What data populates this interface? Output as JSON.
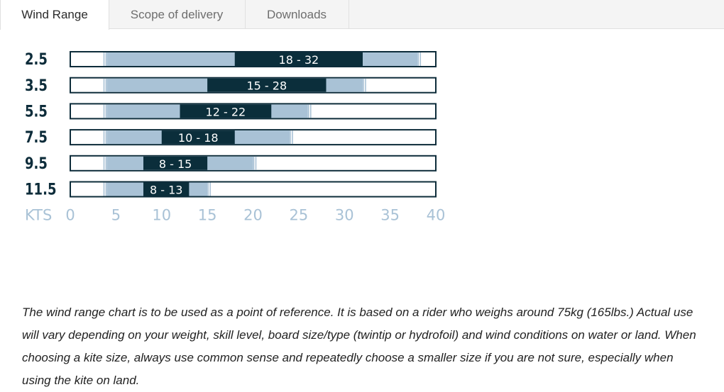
{
  "tabs": [
    {
      "label": "Wind Range",
      "active": true
    },
    {
      "label": "Scope of delivery",
      "active": false
    },
    {
      "label": "Downloads",
      "active": false
    }
  ],
  "chart_data": {
    "type": "bar",
    "xlabel": "KTS",
    "xlim": [
      0,
      40
    ],
    "xticks": [
      0,
      5,
      10,
      15,
      20,
      25,
      30,
      35,
      40
    ],
    "colors": {
      "outline": "#0d2c3a",
      "core": "#0b2e3b",
      "extended": "#a9c2d6",
      "axis": "#a9c2d6"
    },
    "rows": [
      {
        "size": "2.5",
        "ext_min": 4,
        "ext_max": 38,
        "core_min": 18,
        "core_max": 32,
        "label": "18 - 32"
      },
      {
        "size": "3.5",
        "ext_min": 4,
        "ext_max": 32,
        "core_min": 15,
        "core_max": 28,
        "label": "15 - 28"
      },
      {
        "size": "5.5",
        "ext_min": 4,
        "ext_max": 26,
        "core_min": 12,
        "core_max": 22,
        "label": "12 - 22"
      },
      {
        "size": "7.5",
        "ext_min": 4,
        "ext_max": 24,
        "core_min": 10,
        "core_max": 18,
        "label": "10 - 18"
      },
      {
        "size": "9.5",
        "ext_min": 4,
        "ext_max": 20,
        "core_min": 8,
        "core_max": 15,
        "label": "8 - 15"
      },
      {
        "size": "11.5",
        "ext_min": 4,
        "ext_max": 15,
        "core_min": 8,
        "core_max": 13,
        "label": "8 - 13"
      }
    ]
  },
  "note": "The wind range chart is to be used as a point of reference. It is based on a rider who weighs around 75kg (165lbs.) Actual use will vary depending on your weight, skill level, board size/type (twintip or hydrofoil) and wind conditions on water or land. When choosing a kite size, always use common sense and repeatedly choose a smaller size if you are not sure, especially when using the kite on land."
}
